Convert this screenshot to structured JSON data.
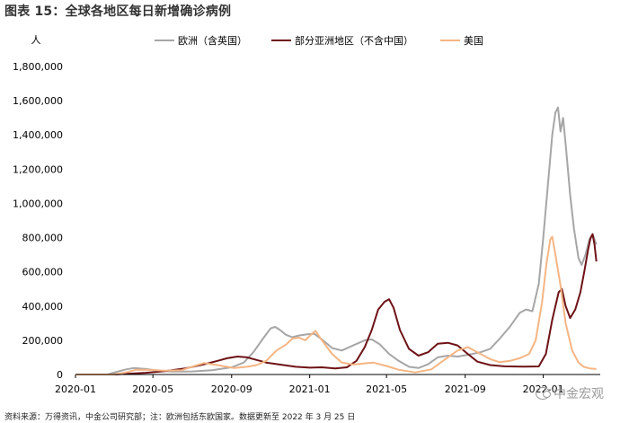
{
  "figure_title": "图表 15：全球各地区每日新增确诊病例",
  "source_note": "资料来源：万得资讯，中金公司研究部；注：欧洲包括东欧国家。数据更新至 2022 年 3 月 25 日",
  "watermark": "中金宏观",
  "chart_data": {
    "type": "line",
    "ylabel": "人",
    "ylim": [
      0,
      1800000
    ],
    "yticks": [
      0,
      200000,
      400000,
      600000,
      800000,
      1000000,
      1200000,
      1400000,
      1600000,
      1800000
    ],
    "ytick_labels": [
      "0",
      "200,000",
      "400,000",
      "600,000",
      "800,000",
      "1,000,000",
      "1,200,000",
      "1,400,000",
      "1,600,000",
      "1,800,000"
    ],
    "xlim": [
      "2020-01",
      "2022-03"
    ],
    "xticks": [
      "2020-01",
      "2020-05",
      "2020-09",
      "2021-01",
      "2021-05",
      "2021-09",
      "2022-01"
    ],
    "grid": false,
    "legend_position": "top",
    "series": [
      {
        "name": "欧洲（含英国）",
        "color": "#a6a6a6",
        "points": [
          [
            "2020-01-01",
            0
          ],
          [
            "2020-02-20",
            0
          ],
          [
            "2020-03-05",
            15000
          ],
          [
            "2020-03-20",
            30000
          ],
          [
            "2020-04-01",
            38000
          ],
          [
            "2020-04-20",
            32000
          ],
          [
            "2020-05-10",
            22000
          ],
          [
            "2020-06-01",
            17000
          ],
          [
            "2020-07-01",
            18000
          ],
          [
            "2020-08-01",
            25000
          ],
          [
            "2020-09-01",
            42000
          ],
          [
            "2020-09-20",
            70000
          ],
          [
            "2020-10-05",
            130000
          ],
          [
            "2020-10-20",
            210000
          ],
          [
            "2020-11-01",
            270000
          ],
          [
            "2020-11-08",
            278000
          ],
          [
            "2020-11-15",
            262000
          ],
          [
            "2020-11-25",
            232000
          ],
          [
            "2020-12-05",
            218000
          ],
          [
            "2020-12-15",
            228000
          ],
          [
            "2020-12-28",
            235000
          ],
          [
            "2021-01-08",
            238000
          ],
          [
            "2021-01-20",
            205000
          ],
          [
            "2021-02-05",
            155000
          ],
          [
            "2021-02-20",
            140000
          ],
          [
            "2021-03-10",
            170000
          ],
          [
            "2021-03-28",
            200000
          ],
          [
            "2021-04-08",
            205000
          ],
          [
            "2021-04-20",
            178000
          ],
          [
            "2021-05-05",
            120000
          ],
          [
            "2021-05-20",
            80000
          ],
          [
            "2021-06-05",
            45000
          ],
          [
            "2021-06-20",
            38000
          ],
          [
            "2021-07-05",
            60000
          ],
          [
            "2021-07-20",
            100000
          ],
          [
            "2021-08-05",
            110000
          ],
          [
            "2021-08-20",
            105000
          ],
          [
            "2021-09-05",
            115000
          ],
          [
            "2021-09-25",
            130000
          ],
          [
            "2021-10-10",
            150000
          ],
          [
            "2021-10-25",
            210000
          ],
          [
            "2021-11-10",
            280000
          ],
          [
            "2021-11-25",
            360000
          ],
          [
            "2021-12-05",
            380000
          ],
          [
            "2021-12-15",
            370000
          ],
          [
            "2021-12-25",
            530000
          ],
          [
            "2022-01-01",
            800000
          ],
          [
            "2022-01-08",
            1100000
          ],
          [
            "2022-01-15",
            1400000
          ],
          [
            "2022-01-20",
            1530000
          ],
          [
            "2022-01-24",
            1560000
          ],
          [
            "2022-01-28",
            1420000
          ],
          [
            "2022-02-01",
            1500000
          ],
          [
            "2022-02-06",
            1300000
          ],
          [
            "2022-02-12",
            1050000
          ],
          [
            "2022-02-18",
            850000
          ],
          [
            "2022-02-25",
            680000
          ],
          [
            "2022-03-02",
            640000
          ],
          [
            "2022-03-08",
            700000
          ],
          [
            "2022-03-14",
            790000
          ],
          [
            "2022-03-20",
            810000
          ],
          [
            "2022-03-25",
            760000
          ]
        ]
      },
      {
        "name": "部分亚洲地区（不含中国）",
        "color": "#6e1216",
        "points": [
          [
            "2020-01-01",
            0
          ],
          [
            "2020-03-01",
            0
          ],
          [
            "2020-03-20",
            4000
          ],
          [
            "2020-04-20",
            10000
          ],
          [
            "2020-05-20",
            20000
          ],
          [
            "2020-06-20",
            35000
          ],
          [
            "2020-07-20",
            60000
          ],
          [
            "2020-08-10",
            80000
          ],
          [
            "2020-08-25",
            95000
          ],
          [
            "2020-09-10",
            105000
          ],
          [
            "2020-09-25",
            100000
          ],
          [
            "2020-10-10",
            85000
          ],
          [
            "2020-10-25",
            70000
          ],
          [
            "2020-11-15",
            58000
          ],
          [
            "2020-12-10",
            45000
          ],
          [
            "2021-01-01",
            40000
          ],
          [
            "2021-01-20",
            42000
          ],
          [
            "2021-02-10",
            35000
          ],
          [
            "2021-02-28",
            42000
          ],
          [
            "2021-03-15",
            80000
          ],
          [
            "2021-03-28",
            160000
          ],
          [
            "2021-04-08",
            260000
          ],
          [
            "2021-04-18",
            380000
          ],
          [
            "2021-04-28",
            425000
          ],
          [
            "2021-05-05",
            440000
          ],
          [
            "2021-05-12",
            390000
          ],
          [
            "2021-05-22",
            260000
          ],
          [
            "2021-06-05",
            150000
          ],
          [
            "2021-06-20",
            110000
          ],
          [
            "2021-07-05",
            130000
          ],
          [
            "2021-07-20",
            180000
          ],
          [
            "2021-08-05",
            185000
          ],
          [
            "2021-08-20",
            170000
          ],
          [
            "2021-09-05",
            120000
          ],
          [
            "2021-09-20",
            75000
          ],
          [
            "2021-10-10",
            55000
          ],
          [
            "2021-11-01",
            48000
          ],
          [
            "2021-12-01",
            46000
          ],
          [
            "2021-12-25",
            47000
          ],
          [
            "2022-01-05",
            120000
          ],
          [
            "2022-01-15",
            320000
          ],
          [
            "2022-01-25",
            480000
          ],
          [
            "2022-01-30",
            500000
          ],
          [
            "2022-02-05",
            400000
          ],
          [
            "2022-02-12",
            330000
          ],
          [
            "2022-02-20",
            380000
          ],
          [
            "2022-02-28",
            480000
          ],
          [
            "2022-03-06",
            600000
          ],
          [
            "2022-03-12",
            730000
          ],
          [
            "2022-03-16",
            800000
          ],
          [
            "2022-03-19",
            820000
          ],
          [
            "2022-03-22",
            760000
          ],
          [
            "2022-03-25",
            660000
          ]
        ]
      },
      {
        "name": "美国",
        "color": "#f5b583",
        "points": [
          [
            "2020-01-01",
            0
          ],
          [
            "2020-03-01",
            0
          ],
          [
            "2020-03-20",
            12000
          ],
          [
            "2020-04-05",
            28000
          ],
          [
            "2020-04-25",
            27000
          ],
          [
            "2020-05-20",
            22000
          ],
          [
            "2020-06-15",
            25000
          ],
          [
            "2020-07-05",
            50000
          ],
          [
            "2020-07-20",
            67000
          ],
          [
            "2020-08-10",
            55000
          ],
          [
            "2020-09-05",
            38000
          ],
          [
            "2020-09-25",
            45000
          ],
          [
            "2020-10-10",
            55000
          ],
          [
            "2020-10-25",
            80000
          ],
          [
            "2020-11-10",
            140000
          ],
          [
            "2020-11-25",
            175000
          ],
          [
            "2020-12-05",
            210000
          ],
          [
            "2020-12-15",
            215000
          ],
          [
            "2020-12-25",
            200000
          ],
          [
            "2021-01-05",
            240000
          ],
          [
            "2021-01-10",
            255000
          ],
          [
            "2021-01-20",
            200000
          ],
          [
            "2021-02-05",
            120000
          ],
          [
            "2021-02-20",
            70000
          ],
          [
            "2021-03-10",
            58000
          ],
          [
            "2021-04-10",
            70000
          ],
          [
            "2021-05-01",
            50000
          ],
          [
            "2021-05-20",
            28000
          ],
          [
            "2021-06-15",
            12000
          ],
          [
            "2021-07-10",
            30000
          ],
          [
            "2021-08-01",
            90000
          ],
          [
            "2021-08-20",
            140000
          ],
          [
            "2021-09-05",
            160000
          ],
          [
            "2021-09-20",
            130000
          ],
          [
            "2021-10-10",
            90000
          ],
          [
            "2021-10-25",
            72000
          ],
          [
            "2021-11-10",
            80000
          ],
          [
            "2021-11-25",
            95000
          ],
          [
            "2021-12-10",
            120000
          ],
          [
            "2021-12-20",
            200000
          ],
          [
            "2021-12-30",
            420000
          ],
          [
            "2022-01-06",
            650000
          ],
          [
            "2022-01-12",
            790000
          ],
          [
            "2022-01-15",
            805000
          ],
          [
            "2022-01-20",
            700000
          ],
          [
            "2022-01-28",
            520000
          ],
          [
            "2022-02-05",
            300000
          ],
          [
            "2022-02-15",
            140000
          ],
          [
            "2022-02-25",
            70000
          ],
          [
            "2022-03-05",
            45000
          ],
          [
            "2022-03-15",
            35000
          ],
          [
            "2022-03-25",
            32000
          ]
        ]
      }
    ]
  }
}
